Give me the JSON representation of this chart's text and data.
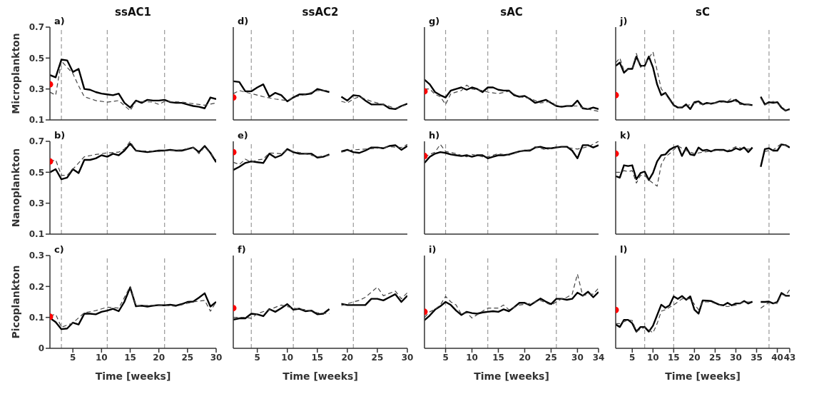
{
  "chart_data": [
    {
      "type": "line",
      "title": "ssAC1",
      "ylabel": "Microplankton",
      "annotations": [
        "a)"
      ],
      "xlim": [
        1,
        30
      ],
      "xticks": [
        5,
        10,
        15,
        20,
        25,
        30
      ],
      "ylim": [
        0.1,
        0.7
      ],
      "yticks": [
        0.1,
        0.3,
        0.5,
        0.7
      ],
      "tick_labels": "y",
      "ref_lines": [
        {
          "axis": "x",
          "value": 3,
          "color": "#999999",
          "line_style": "dashed"
        },
        {
          "axis": "x",
          "value": 11,
          "color": "#999999",
          "line_style": "dashed"
        },
        {
          "axis": "x",
          "value": 21,
          "color": "#999999",
          "line_style": "dashed"
        }
      ],
      "series": [
        {
          "color": "#000000",
          "line_style": "solid",
          "x": [
            1,
            2,
            3,
            4,
            5,
            6,
            7,
            8,
            9,
            10,
            11,
            12,
            13,
            14,
            15,
            16,
            17,
            18,
            19,
            20,
            21,
            22,
            23,
            24,
            25,
            26,
            27,
            28,
            29,
            30
          ],
          "values": [
            0.39,
            0.375,
            0.49,
            0.485,
            0.41,
            0.43,
            0.3,
            0.295,
            0.28,
            0.27,
            0.265,
            0.26,
            0.27,
            0.21,
            0.18,
            0.225,
            0.21,
            0.23,
            0.225,
            0.225,
            0.23,
            0.215,
            0.21,
            0.21,
            0.2,
            0.19,
            0.185,
            0.175,
            0.245,
            0.235
          ]
        },
        {
          "color": "#444444",
          "line_style": "dashed",
          "x": [
            1,
            2,
            3,
            5,
            6,
            7,
            9,
            11,
            13,
            15,
            16,
            19,
            20,
            21,
            24,
            28,
            30
          ],
          "values": [
            0.28,
            0.26,
            0.48,
            0.4,
            0.32,
            0.25,
            0.225,
            0.215,
            0.225,
            0.16,
            0.22,
            0.215,
            0.2,
            0.22,
            0.215,
            0.195,
            0.21
          ]
        },
        {
          "type": "scatter",
          "color": "#ff0000",
          "marker": "circle",
          "x": [
            1
          ],
          "values": [
            0.33
          ]
        }
      ]
    },
    {
      "type": "line",
      "title": "ssAC2",
      "annotations": [
        "d)"
      ],
      "xlim": [
        1,
        30
      ],
      "xticks": [
        5,
        10,
        15,
        20,
        25,
        30
      ],
      "ylim": [
        0.1,
        0.7
      ],
      "yticks": [
        0.1,
        0.3,
        0.5,
        0.7
      ],
      "tick_labels": false,
      "ref_lines": [
        {
          "axis": "x",
          "value": 4,
          "color": "#999999",
          "line_style": "dashed"
        },
        {
          "axis": "x",
          "value": 11,
          "color": "#999999",
          "line_style": "dashed"
        },
        {
          "axis": "x",
          "value": 21,
          "color": "#999999",
          "line_style": "dashed"
        }
      ],
      "series": [
        {
          "color": "#000000",
          "line_style": "solid",
          "x": [
            1,
            2,
            3,
            4,
            5,
            6,
            7,
            8,
            9,
            10,
            11,
            12,
            13,
            14,
            15,
            16,
            17,
            18,
            19,
            20,
            21,
            22,
            23,
            24,
            25,
            26,
            27,
            28,
            29,
            30
          ],
          "values": [
            0.35,
            0.345,
            0.285,
            0.285,
            0.31,
            0.33,
            0.25,
            0.275,
            0.26,
            0.22,
            0.245,
            0.265,
            0.265,
            0.27,
            0.3,
            0.29,
            0.28,
            null,
            0.25,
            0.225,
            0.26,
            0.255,
            0.225,
            0.2,
            0.2,
            0.2,
            0.175,
            0.17,
            0.19,
            0.205
          ]
        },
        {
          "color": "#444444",
          "line_style": "dashed",
          "x": [
            1,
            2,
            4,
            6,
            8,
            10,
            11,
            13,
            15,
            17,
            18,
            19,
            20,
            21,
            22,
            24,
            26,
            28,
            30
          ],
          "values": [
            0.27,
            0.29,
            0.27,
            0.25,
            0.235,
            0.225,
            0.245,
            0.265,
            0.29,
            0.29,
            null,
            0.22,
            0.21,
            0.235,
            0.25,
            0.22,
            0.2,
            0.175,
            0.2
          ]
        },
        {
          "type": "scatter",
          "color": "#ff0000",
          "marker": "circle",
          "x": [
            1
          ],
          "values": [
            0.245
          ]
        }
      ]
    },
    {
      "type": "line",
      "title": "sAC",
      "annotations": [
        "g)"
      ],
      "xlim": [
        1,
        34
      ],
      "xticks": [
        5,
        10,
        15,
        20,
        25,
        30,
        34
      ],
      "ylim": [
        0.1,
        0.7
      ],
      "yticks": [
        0.1,
        0.3,
        0.5,
        0.7
      ],
      "tick_labels": false,
      "ref_lines": [
        {
          "axis": "x",
          "value": 5,
          "color": "#999999",
          "line_style": "dashed"
        },
        {
          "axis": "x",
          "value": 13,
          "color": "#999999",
          "line_style": "dashed"
        },
        {
          "axis": "x",
          "value": 26,
          "color": "#999999",
          "line_style": "dashed"
        }
      ],
      "series": [
        {
          "color": "#000000",
          "line_style": "solid",
          "x": [
            1,
            2,
            3,
            4,
            5,
            6,
            7,
            8,
            9,
            10,
            11,
            12,
            13,
            14,
            15,
            16,
            17,
            18,
            19,
            20,
            21,
            22,
            23,
            24,
            25,
            26,
            27,
            28,
            29,
            30,
            31,
            32,
            33,
            34
          ],
          "values": [
            0.36,
            0.33,
            0.28,
            0.26,
            0.245,
            0.29,
            0.3,
            0.31,
            0.295,
            0.31,
            0.3,
            0.28,
            0.31,
            0.31,
            0.295,
            0.29,
            0.29,
            0.26,
            0.25,
            0.255,
            0.235,
            0.21,
            0.22,
            0.23,
            0.21,
            0.19,
            0.185,
            0.19,
            0.19,
            0.225,
            0.175,
            0.17,
            0.18,
            0.17
          ]
        },
        {
          "color": "#444444",
          "line_style": "dashed",
          "x": [
            1,
            2,
            3,
            4,
            5,
            6,
            8,
            9,
            10,
            12,
            13,
            14,
            15,
            17,
            19,
            21,
            23,
            25,
            26,
            28,
            30,
            32,
            34
          ],
          "values": [
            0.3,
            0.3,
            0.265,
            0.25,
            0.2,
            0.27,
            0.29,
            0.325,
            0.3,
            0.29,
            0.28,
            0.275,
            0.27,
            0.285,
            0.25,
            0.24,
            0.21,
            0.22,
            0.19,
            0.19,
            0.19,
            0.17,
            0.155
          ]
        },
        {
          "type": "scatter",
          "color": "#ff0000",
          "marker": "circle",
          "x": [
            1
          ],
          "values": [
            0.285
          ]
        }
      ]
    },
    {
      "type": "line",
      "title": "sC",
      "annotations": [
        "j)"
      ],
      "xlim": [
        1,
        43
      ],
      "xticks": [
        5,
        10,
        15,
        20,
        25,
        30,
        35,
        40,
        43
      ],
      "ylim": [
        0.1,
        0.7
      ],
      "yticks": [
        0.1,
        0.3,
        0.5,
        0.7
      ],
      "tick_labels": false,
      "ref_lines": [
        {
          "axis": "x",
          "value": 8,
          "color": "#999999",
          "line_style": "dashed"
        },
        {
          "axis": "x",
          "value": 15,
          "color": "#999999",
          "line_style": "dashed"
        },
        {
          "axis": "x",
          "value": 38,
          "color": "#999999",
          "line_style": "dashed"
        }
      ],
      "series": [
        {
          "color": "#000000",
          "line_style": "solid",
          "x": [
            1,
            2,
            3,
            4,
            5,
            6,
            7,
            8,
            9,
            10,
            11,
            12,
            13,
            14,
            15,
            16,
            17,
            18,
            19,
            20,
            21,
            22,
            23,
            24,
            25,
            26,
            27,
            28,
            29,
            30,
            31,
            32,
            33,
            34,
            35,
            36,
            37,
            38,
            39,
            40,
            41,
            42,
            43
          ],
          "values": [
            0.45,
            0.47,
            0.405,
            0.43,
            0.43,
            0.51,
            0.45,
            0.45,
            0.51,
            0.44,
            0.33,
            0.26,
            0.275,
            0.235,
            0.195,
            0.18,
            0.18,
            0.2,
            0.17,
            0.215,
            0.22,
            0.2,
            0.21,
            0.205,
            0.21,
            0.22,
            0.22,
            0.215,
            0.22,
            0.23,
            0.21,
            0.2,
            0.2,
            0.195,
            null,
            0.25,
            0.2,
            0.215,
            0.21,
            0.215,
            0.18,
            0.16,
            0.17
          ]
        },
        {
          "color": "#444444",
          "line_style": "dashed",
          "x": [
            1,
            2,
            3,
            5,
            6,
            7,
            8,
            9,
            10,
            11,
            12,
            13,
            15,
            16,
            18,
            20,
            22,
            25,
            28,
            29,
            31,
            34,
            35,
            36,
            37,
            39,
            41,
            42,
            43
          ],
          "values": [
            0.47,
            0.5,
            0.42,
            0.43,
            0.53,
            0.44,
            0.46,
            0.5,
            0.54,
            0.42,
            0.3,
            0.27,
            0.19,
            0.18,
            0.19,
            0.21,
            0.2,
            0.21,
            0.22,
            0.24,
            0.2,
            0.2,
            null,
            0.24,
            0.2,
            0.22,
            0.19,
            0.16,
            0.165
          ]
        },
        {
          "type": "scatter",
          "color": "#ff0000",
          "marker": "circle",
          "x": [
            1
          ],
          "values": [
            0.26
          ]
        }
      ]
    },
    {
      "type": "line",
      "ylabel": "Nanoplankton",
      "annotations": [
        "b)"
      ],
      "xlim": [
        1,
        30
      ],
      "xticks": [
        5,
        10,
        15,
        20,
        25,
        30
      ],
      "ylim": [
        0.1,
        0.7
      ],
      "yticks": [
        0.1,
        0.3,
        0.5,
        0.7
      ],
      "tick_labels": "y",
      "ref_lines": [
        {
          "axis": "x",
          "value": 3,
          "color": "#999999",
          "line_style": "dashed"
        },
        {
          "axis": "x",
          "value": 11,
          "color": "#999999",
          "line_style": "dashed"
        },
        {
          "axis": "x",
          "value": 21,
          "color": "#999999",
          "line_style": "dashed"
        }
      ],
      "series": [
        {
          "color": "#000000",
          "line_style": "solid",
          "x": [
            1,
            2,
            3,
            4,
            5,
            6,
            7,
            8,
            9,
            10,
            11,
            12,
            13,
            14,
            15,
            16,
            17,
            18,
            19,
            20,
            21,
            22,
            23,
            24,
            25,
            26,
            27,
            28,
            29,
            30
          ],
          "values": [
            0.5,
            0.52,
            0.455,
            0.465,
            0.52,
            0.495,
            0.58,
            0.58,
            0.59,
            0.61,
            0.6,
            0.62,
            0.61,
            0.64,
            0.685,
            0.64,
            0.635,
            0.63,
            0.635,
            0.64,
            0.64,
            0.645,
            0.64,
            0.64,
            0.65,
            0.66,
            0.63,
            0.67,
            0.625,
            0.565
          ]
        },
        {
          "color": "#444444",
          "line_style": "dashed",
          "x": [
            1,
            2,
            3,
            4,
            5,
            6,
            7,
            9,
            11,
            13,
            14,
            15,
            16,
            20,
            24,
            26,
            27,
            28,
            30
          ],
          "values": [
            0.57,
            0.58,
            0.48,
            0.48,
            0.52,
            0.56,
            0.6,
            0.615,
            0.625,
            0.63,
            0.65,
            0.7,
            0.64,
            0.635,
            0.645,
            0.66,
            0.62,
            0.665,
            0.58
          ]
        },
        {
          "type": "scatter",
          "color": "#ff0000",
          "marker": "circle",
          "x": [
            1
          ],
          "values": [
            0.57
          ]
        }
      ]
    },
    {
      "type": "line",
      "annotations": [
        "e)"
      ],
      "xlim": [
        1,
        30
      ],
      "xticks": [
        5,
        10,
        15,
        20,
        25,
        30
      ],
      "ylim": [
        0.1,
        0.7
      ],
      "yticks": [
        0.1,
        0.3,
        0.5,
        0.7
      ],
      "tick_labels": false,
      "ref_lines": [
        {
          "axis": "x",
          "value": 4,
          "color": "#999999",
          "line_style": "dashed"
        },
        {
          "axis": "x",
          "value": 11,
          "color": "#999999",
          "line_style": "dashed"
        },
        {
          "axis": "x",
          "value": 21,
          "color": "#999999",
          "line_style": "dashed"
        }
      ],
      "series": [
        {
          "color": "#000000",
          "line_style": "solid",
          "x": [
            1,
            2,
            3,
            4,
            5,
            6,
            7,
            8,
            9,
            10,
            11,
            12,
            13,
            14,
            15,
            16,
            17,
            18,
            19,
            20,
            21,
            22,
            23,
            24,
            25,
            26,
            27,
            28,
            29,
            30
          ],
          "values": [
            0.515,
            0.535,
            0.56,
            0.57,
            0.565,
            0.56,
            0.62,
            0.595,
            0.61,
            0.65,
            0.63,
            0.62,
            0.62,
            0.62,
            0.595,
            0.6,
            0.615,
            null,
            0.635,
            0.645,
            0.63,
            0.625,
            0.64,
            0.66,
            0.66,
            0.655,
            0.67,
            0.675,
            0.645,
            0.67
          ]
        },
        {
          "color": "#444444",
          "line_style": "dashed",
          "x": [
            1,
            2,
            3,
            4,
            5,
            6,
            7,
            9,
            10,
            11,
            13,
            15,
            17,
            18,
            19,
            21,
            23,
            25,
            27,
            29,
            30
          ],
          "values": [
            0.565,
            0.55,
            0.585,
            0.565,
            0.58,
            0.585,
            0.625,
            0.62,
            0.645,
            0.635,
            0.62,
            0.6,
            0.61,
            null,
            0.63,
            0.645,
            0.65,
            0.655,
            0.665,
            0.66,
            0.68
          ]
        },
        {
          "type": "scatter",
          "color": "#ff0000",
          "marker": "circle",
          "x": [
            1
          ],
          "values": [
            0.63
          ]
        }
      ]
    },
    {
      "type": "line",
      "annotations": [
        "h)"
      ],
      "xlim": [
        1,
        34
      ],
      "xticks": [
        5,
        10,
        15,
        20,
        25,
        30,
        34
      ],
      "ylim": [
        0.1,
        0.7
      ],
      "yticks": [
        0.1,
        0.3,
        0.5,
        0.7
      ],
      "tick_labels": false,
      "ref_lines": [
        {
          "axis": "x",
          "value": 5,
          "color": "#999999",
          "line_style": "dashed"
        },
        {
          "axis": "x",
          "value": 13,
          "color": "#999999",
          "line_style": "dashed"
        },
        {
          "axis": "x",
          "value": 26,
          "color": "#999999",
          "line_style": "dashed"
        }
      ],
      "series": [
        {
          "color": "#000000",
          "line_style": "solid",
          "x": [
            1,
            2,
            3,
            4,
            5,
            6,
            7,
            8,
            9,
            10,
            11,
            12,
            13,
            14,
            15,
            16,
            17,
            18,
            19,
            20,
            21,
            22,
            23,
            24,
            25,
            26,
            27,
            28,
            29,
            30,
            31,
            32,
            33,
            34
          ],
          "values": [
            0.56,
            0.6,
            0.62,
            0.63,
            0.625,
            0.615,
            0.61,
            0.605,
            0.61,
            0.6,
            0.61,
            0.61,
            0.59,
            0.6,
            0.61,
            0.61,
            0.615,
            0.625,
            0.635,
            0.64,
            0.64,
            0.66,
            0.665,
            0.655,
            0.655,
            0.66,
            0.665,
            0.665,
            0.64,
            0.59,
            0.675,
            0.675,
            0.66,
            0.675
          ]
        },
        {
          "color": "#444444",
          "line_style": "dashed",
          "x": [
            1,
            2,
            3,
            4,
            5,
            7,
            9,
            10,
            12,
            13,
            15,
            17,
            19,
            21,
            22,
            24,
            26,
            28,
            30,
            32,
            34
          ],
          "values": [
            0.6,
            0.615,
            0.63,
            0.68,
            0.635,
            0.62,
            0.6,
            0.615,
            0.6,
            0.6,
            0.62,
            0.61,
            0.635,
            0.645,
            0.665,
            0.645,
            0.665,
            0.66,
            0.65,
            0.665,
            0.7
          ]
        },
        {
          "type": "scatter",
          "color": "#ff0000",
          "marker": "circle",
          "x": [
            1
          ],
          "values": [
            0.605
          ]
        }
      ]
    },
    {
      "type": "line",
      "annotations": [
        "k)"
      ],
      "xlim": [
        1,
        43
      ],
      "xticks": [
        5,
        10,
        15,
        20,
        25,
        30,
        35,
        40,
        43
      ],
      "ylim": [
        0.1,
        0.7
      ],
      "yticks": [
        0.1,
        0.3,
        0.5,
        0.7
      ],
      "tick_labels": false,
      "ref_lines": [
        {
          "axis": "x",
          "value": 8,
          "color": "#999999",
          "line_style": "dashed"
        },
        {
          "axis": "x",
          "value": 15,
          "color": "#999999",
          "line_style": "dashed"
        },
        {
          "axis": "x",
          "value": 38,
          "color": "#999999",
          "line_style": "dashed"
        }
      ],
      "series": [
        {
          "color": "#000000",
          "line_style": "solid",
          "x": [
            1,
            2,
            3,
            4,
            5,
            6,
            7,
            8,
            9,
            10,
            11,
            12,
            13,
            14,
            15,
            16,
            17,
            18,
            19,
            20,
            21,
            22,
            23,
            24,
            25,
            26,
            27,
            28,
            29,
            30,
            31,
            32,
            33,
            34,
            35,
            36,
            37,
            38,
            39,
            40,
            41,
            42,
            43
          ],
          "values": [
            0.475,
            0.465,
            0.545,
            0.54,
            0.545,
            0.455,
            0.495,
            0.505,
            0.45,
            0.495,
            0.57,
            0.61,
            0.615,
            0.645,
            0.66,
            0.67,
            0.605,
            0.66,
            0.615,
            0.61,
            0.66,
            0.64,
            0.645,
            0.635,
            0.645,
            0.645,
            0.645,
            0.635,
            0.64,
            0.655,
            0.645,
            0.66,
            0.63,
            0.66,
            null,
            0.535,
            0.65,
            0.655,
            0.64,
            0.64,
            0.68,
            0.675,
            0.66
          ]
        },
        {
          "color": "#444444",
          "line_style": "dashed",
          "x": [
            1,
            2,
            3,
            4,
            5,
            6,
            7,
            8,
            9,
            10,
            11,
            12,
            13,
            14,
            16,
            18,
            20,
            22,
            25,
            28,
            30,
            32,
            34,
            35,
            37,
            39,
            41,
            43
          ],
          "values": [
            0.5,
            0.5,
            0.51,
            0.505,
            0.51,
            0.43,
            0.48,
            0.48,
            0.45,
            0.43,
            0.41,
            0.55,
            0.6,
            0.62,
            0.67,
            0.64,
            0.62,
            0.63,
            0.64,
            0.64,
            0.665,
            0.65,
            0.65,
            null,
            0.635,
            0.645,
            0.685,
            0.66
          ]
        },
        {
          "type": "scatter",
          "color": "#ff0000",
          "marker": "circle",
          "x": [
            1
          ],
          "values": [
            0.62
          ]
        }
      ]
    },
    {
      "type": "line",
      "ylabel": "Picoplankton",
      "xlabel": "Time [weeks]",
      "annotations": [
        "c)"
      ],
      "xlim": [
        1,
        30
      ],
      "xticks": [
        5,
        10,
        15,
        20,
        25,
        30
      ],
      "ylim": [
        0,
        0.3
      ],
      "yticks": [
        0,
        0.1,
        0.2,
        0.3
      ],
      "ref_lines": [
        {
          "axis": "x",
          "value": 3,
          "color": "#999999",
          "line_style": "dashed"
        },
        {
          "axis": "x",
          "value": 11,
          "color": "#999999",
          "line_style": "dashed"
        },
        {
          "axis": "x",
          "value": 21,
          "color": "#999999",
          "line_style": "dashed"
        }
      ],
      "series": [
        {
          "color": "#000000",
          "line_style": "solid",
          "x": [
            1,
            2,
            3,
            4,
            5,
            6,
            7,
            8,
            9,
            10,
            11,
            12,
            13,
            14,
            15,
            16,
            17,
            18,
            19,
            20,
            21,
            22,
            23,
            24,
            25,
            26,
            27,
            28,
            29,
            30
          ],
          "values": [
            0.098,
            0.085,
            0.062,
            0.064,
            0.083,
            0.077,
            0.112,
            0.112,
            0.11,
            0.118,
            0.122,
            0.128,
            0.12,
            0.151,
            0.197,
            0.136,
            0.138,
            0.135,
            0.138,
            0.14,
            0.139,
            0.141,
            0.138,
            0.143,
            0.15,
            0.151,
            0.164,
            0.178,
            0.135,
            0.15
          ]
        },
        {
          "color": "#444444",
          "line_style": "dashed",
          "x": [
            1,
            2,
            3,
            5,
            7,
            9,
            11,
            13,
            15,
            16,
            20,
            23,
            26,
            28,
            29,
            30
          ],
          "values": [
            0.105,
            0.11,
            0.068,
            0.082,
            0.115,
            0.122,
            0.133,
            0.13,
            0.2,
            0.137,
            0.14,
            0.136,
            0.15,
            0.155,
            0.12,
            0.15
          ]
        },
        {
          "type": "scatter",
          "color": "#ff0000",
          "marker": "circle",
          "x": [
            1
          ],
          "values": [
            0.102
          ]
        }
      ]
    },
    {
      "type": "line",
      "xlabel": "Time [weeks]",
      "annotations": [
        "f)"
      ],
      "xlim": [
        1,
        30
      ],
      "xticks": [
        5,
        10,
        15,
        20,
        25,
        30
      ],
      "ylim": [
        0,
        0.3
      ],
      "yticks": [
        0,
        0.1,
        0.2,
        0.3
      ],
      "tick_labels": "x",
      "ref_lines": [
        {
          "axis": "x",
          "value": 4,
          "color": "#999999",
          "line_style": "dashed"
        },
        {
          "axis": "x",
          "value": 11,
          "color": "#999999",
          "line_style": "dashed"
        },
        {
          "axis": "x",
          "value": 21,
          "color": "#999999",
          "line_style": "dashed"
        }
      ],
      "series": [
        {
          "color": "#000000",
          "line_style": "solid",
          "x": [
            1,
            2,
            3,
            4,
            5,
            6,
            7,
            8,
            9,
            10,
            11,
            12,
            13,
            14,
            15,
            16,
            17,
            18,
            19,
            20,
            21,
            22,
            23,
            24,
            25,
            26,
            27,
            28,
            29,
            30
          ],
          "values": [
            0.093,
            0.097,
            0.097,
            0.112,
            0.11,
            0.104,
            0.127,
            0.118,
            0.13,
            0.143,
            0.125,
            0.128,
            0.12,
            0.122,
            0.11,
            0.112,
            0.127,
            null,
            0.144,
            0.14,
            0.14,
            0.14,
            0.14,
            0.16,
            0.16,
            0.155,
            0.165,
            0.175,
            0.15,
            0.17
          ]
        },
        {
          "color": "#444444",
          "line_style": "dashed",
          "x": [
            1,
            3,
            4,
            5,
            7,
            9,
            11,
            13,
            15,
            17,
            18,
            19,
            21,
            22,
            23,
            25,
            26,
            28,
            29,
            30
          ],
          "values": [
            0.1,
            0.1,
            0.097,
            0.112,
            0.125,
            0.14,
            0.13,
            0.125,
            0.115,
            0.112,
            null,
            0.138,
            0.15,
            0.155,
            0.165,
            0.198,
            0.17,
            0.185,
            0.16,
            0.18
          ]
        },
        {
          "type": "scatter",
          "color": "#ff0000",
          "marker": "circle",
          "x": [
            1
          ],
          "values": [
            0.13
          ]
        }
      ]
    },
    {
      "type": "line",
      "xlabel": "Time [weeks]",
      "annotations": [
        "i)"
      ],
      "xlim": [
        1,
        34
      ],
      "xticks": [
        5,
        10,
        15,
        20,
        25,
        30,
        34
      ],
      "ylim": [
        0,
        0.3
      ],
      "yticks": [
        0,
        0.1,
        0.2,
        0.3
      ],
      "tick_labels": "x",
      "ref_lines": [
        {
          "axis": "x",
          "value": 5,
          "color": "#999999",
          "line_style": "dashed"
        },
        {
          "axis": "x",
          "value": 13,
          "color": "#999999",
          "line_style": "dashed"
        },
        {
          "axis": "x",
          "value": 26,
          "color": "#999999",
          "line_style": "dashed"
        }
      ],
      "series": [
        {
          "color": "#000000",
          "line_style": "solid",
          "x": [
            1,
            2,
            3,
            4,
            5,
            6,
            7,
            8,
            9,
            10,
            11,
            12,
            13,
            14,
            15,
            16,
            17,
            18,
            19,
            20,
            21,
            22,
            23,
            24,
            25,
            26,
            27,
            28,
            29,
            30,
            31,
            32,
            33,
            34
          ],
          "values": [
            0.091,
            0.106,
            0.125,
            0.136,
            0.15,
            0.14,
            0.122,
            0.108,
            0.118,
            0.114,
            0.112,
            0.116,
            0.118,
            0.12,
            0.118,
            0.126,
            0.12,
            0.133,
            0.147,
            0.147,
            0.139,
            0.15,
            0.161,
            0.151,
            0.143,
            0.16,
            0.16,
            0.157,
            0.16,
            0.18,
            0.17,
            0.183,
            0.165,
            0.182
          ]
        },
        {
          "color": "#444444",
          "line_style": "dashed",
          "x": [
            1,
            2,
            3,
            4,
            5,
            6,
            7,
            8,
            9,
            10,
            12,
            13,
            15,
            16,
            17,
            19,
            21,
            23,
            25,
            27,
            28,
            29,
            30,
            31,
            32,
            33,
            34
          ],
          "values": [
            0.1,
            0.118,
            0.126,
            0.14,
            0.168,
            0.15,
            0.14,
            0.11,
            0.115,
            0.098,
            0.12,
            0.13,
            0.13,
            0.14,
            0.125,
            0.14,
            0.145,
            0.155,
            0.14,
            0.16,
            0.165,
            0.175,
            0.24,
            0.17,
            0.175,
            0.175,
            0.195
          ]
        },
        {
          "type": "scatter",
          "color": "#ff0000",
          "marker": "circle",
          "x": [
            1
          ],
          "values": [
            0.118
          ]
        }
      ]
    },
    {
      "type": "line",
      "xlabel": "Time [weeks]",
      "annotations": [
        "l)"
      ],
      "xlim": [
        1,
        43
      ],
      "xticks": [
        5,
        10,
        15,
        20,
        25,
        30,
        35,
        40,
        43
      ],
      "ylim": [
        0,
        0.3
      ],
      "yticks": [
        0,
        0.1,
        0.2,
        0.3
      ],
      "tick_labels": "x",
      "ref_lines": [
        {
          "axis": "x",
          "value": 8,
          "color": "#999999",
          "line_style": "dashed"
        },
        {
          "axis": "x",
          "value": 15,
          "color": "#999999",
          "line_style": "dashed"
        },
        {
          "axis": "x",
          "value": 38,
          "color": "#999999",
          "line_style": "dashed"
        }
      ],
      "series": [
        {
          "color": "#000000",
          "line_style": "solid",
          "x": [
            1,
            2,
            3,
            4,
            5,
            6,
            7,
            8,
            9,
            10,
            11,
            12,
            13,
            14,
            15,
            16,
            17,
            18,
            19,
            20,
            21,
            22,
            23,
            24,
            25,
            26,
            27,
            28,
            29,
            30,
            31,
            32,
            33,
            34,
            35,
            36,
            37,
            38,
            39,
            40,
            41,
            42,
            43
          ],
          "values": [
            0.077,
            0.069,
            0.092,
            0.092,
            0.081,
            0.054,
            0.069,
            0.069,
            0.054,
            0.073,
            0.107,
            0.141,
            0.131,
            0.139,
            0.168,
            0.16,
            0.169,
            0.157,
            0.168,
            0.125,
            0.112,
            0.155,
            0.154,
            0.153,
            0.147,
            0.141,
            0.139,
            0.147,
            0.139,
            0.145,
            0.145,
            0.153,
            0.145,
            0.151,
            null,
            0.15,
            0.15,
            0.151,
            0.145,
            0.15,
            0.179,
            0.17,
            0.17
          ]
        },
        {
          "color": "#444444",
          "line_style": "dashed",
          "x": [
            1,
            2,
            4,
            5,
            6,
            8,
            9,
            10,
            11,
            12,
            13,
            15,
            17,
            19,
            21,
            22,
            24,
            26,
            28,
            30,
            32,
            34,
            35,
            36,
            38,
            40,
            41,
            42,
            43
          ],
          "values": [
            0.08,
            0.08,
            0.092,
            0.09,
            0.055,
            0.068,
            0.06,
            0.05,
            0.08,
            0.12,
            0.125,
            0.14,
            0.16,
            0.16,
            0.125,
            0.15,
            0.15,
            0.14,
            0.135,
            0.14,
            0.15,
            0.15,
            null,
            0.13,
            0.148,
            0.145,
            0.175,
            0.17,
            0.19
          ]
        },
        {
          "type": "scatter",
          "color": "#ff0000",
          "marker": "circle",
          "x": [
            1
          ],
          "values": [
            0.124
          ]
        }
      ]
    }
  ]
}
